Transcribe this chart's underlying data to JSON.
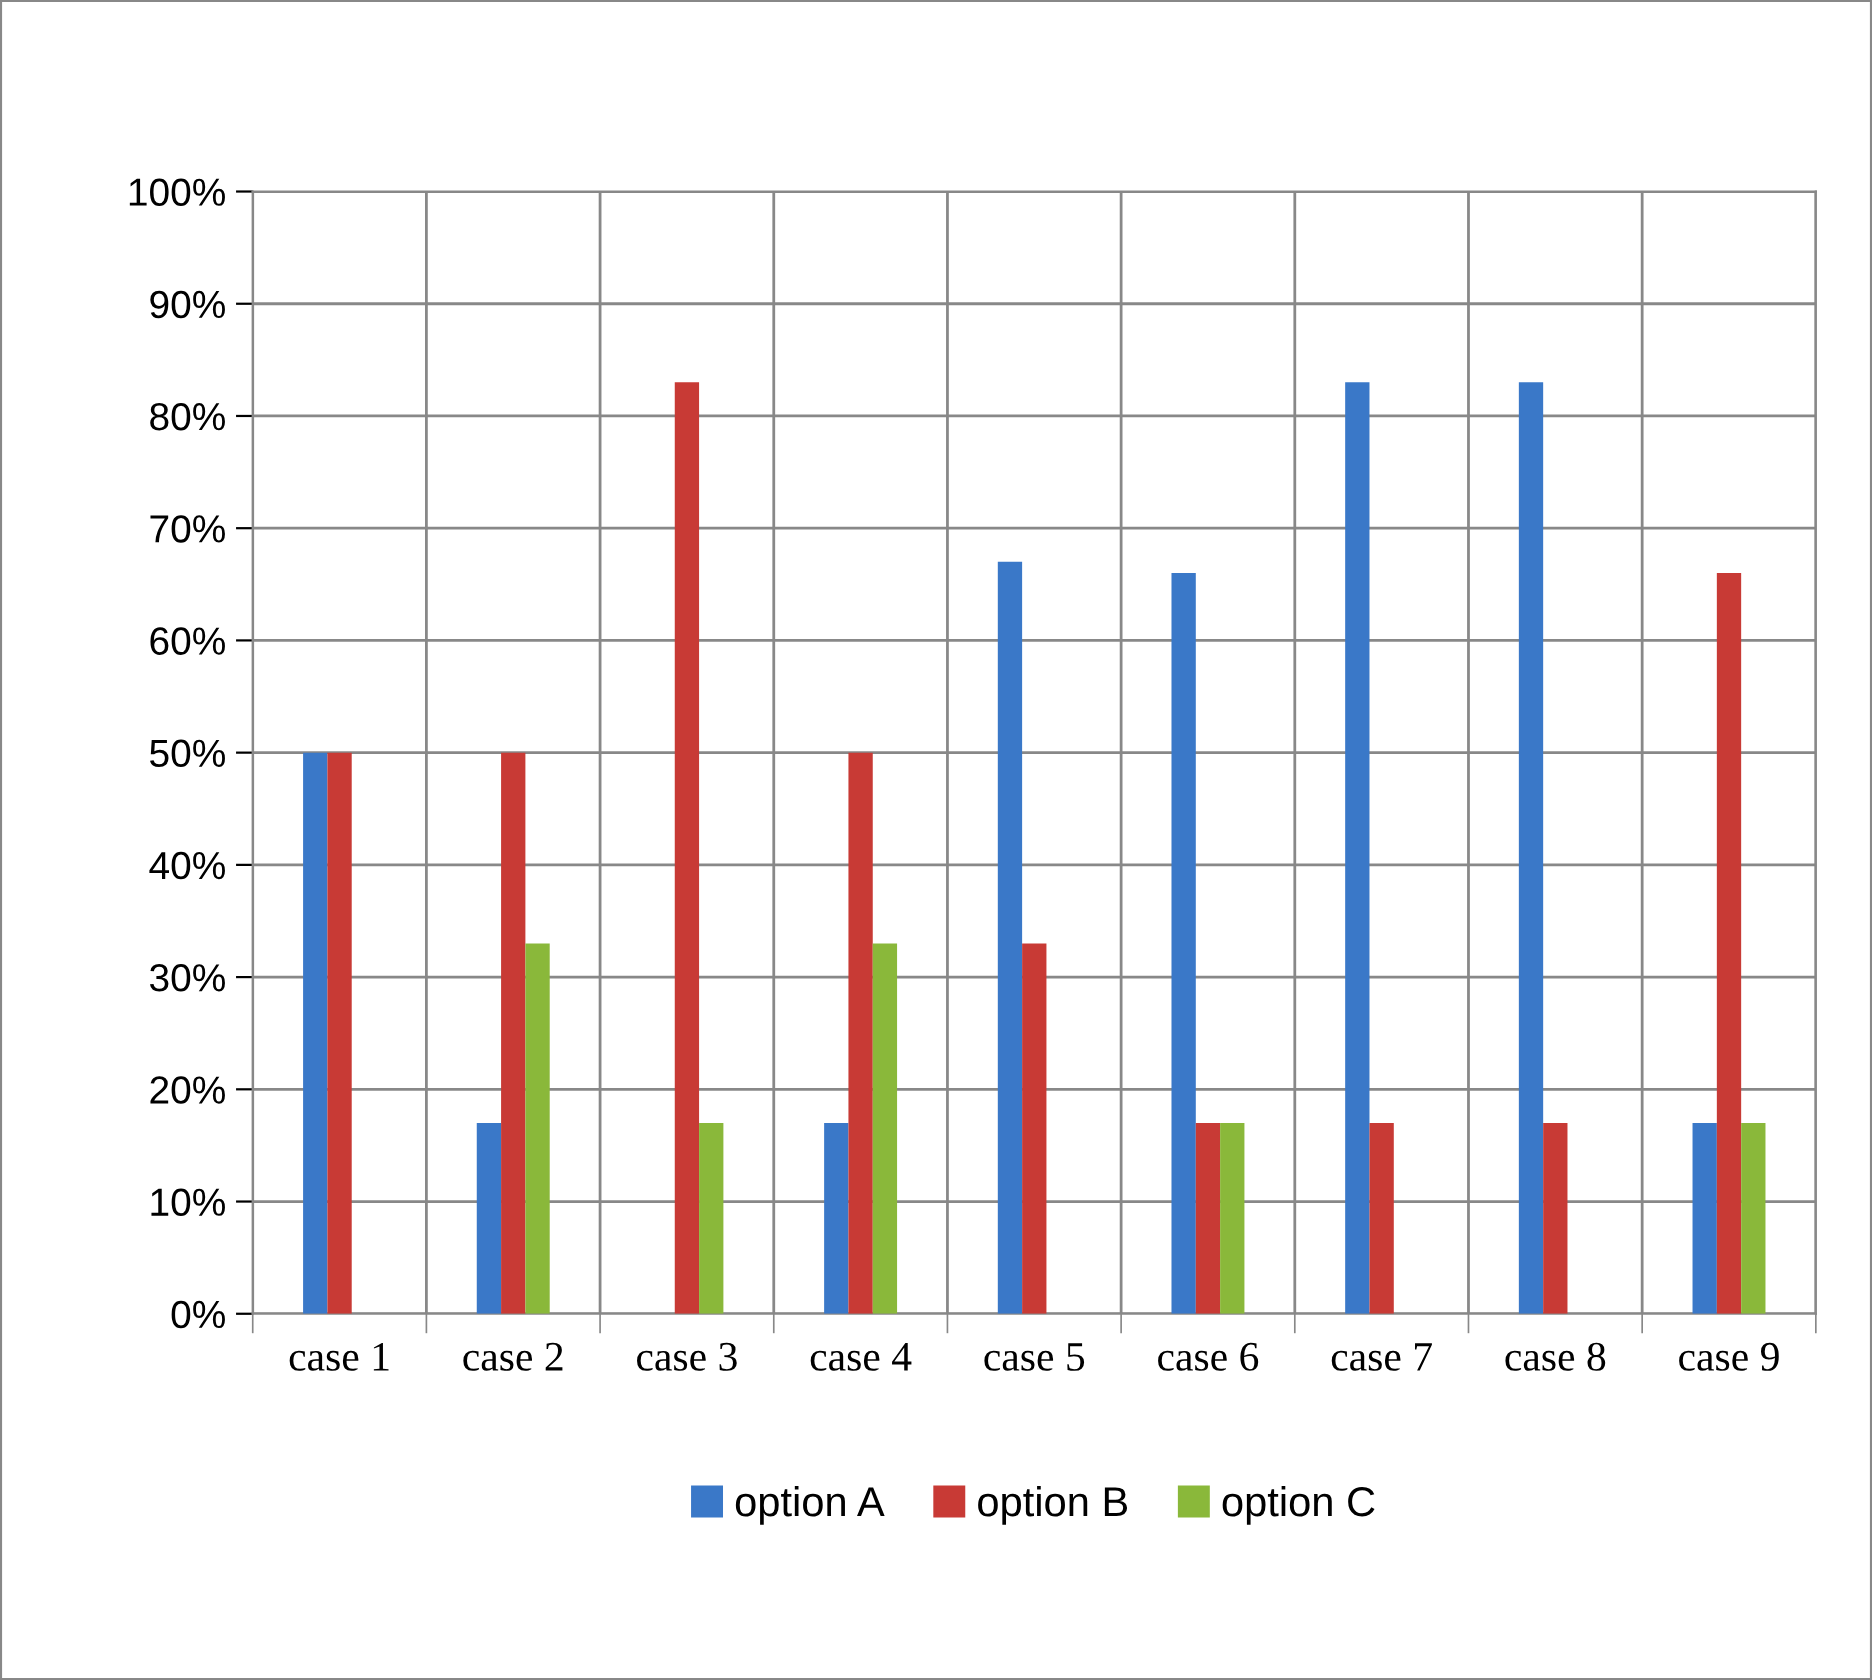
{
  "chart_data": {
    "type": "bar",
    "categories": [
      "case 1",
      "case 2",
      "case 3",
      "case 4",
      "case 5",
      "case 6",
      "case 7",
      "case 8",
      "case 9"
    ],
    "series": [
      {
        "name": "option A",
        "color": "#3a78c8",
        "values": [
          50,
          17,
          null,
          17,
          67,
          66,
          83,
          83,
          17
        ]
      },
      {
        "name": "option B",
        "color": "#c83a35",
        "values": [
          50,
          50,
          83,
          50,
          33,
          17,
          17,
          17,
          66
        ]
      },
      {
        "name": "option C",
        "color": "#8ab83a",
        "values": [
          null,
          33,
          17,
          33,
          null,
          17,
          null,
          null,
          17
        ]
      }
    ],
    "ylim": [
      0,
      100
    ],
    "yticks": [
      {
        "value": 0,
        "label": "0%"
      },
      {
        "value": 10,
        "label": "10%"
      },
      {
        "value": 20,
        "label": "20%"
      },
      {
        "value": 30,
        "label": "30%"
      },
      {
        "value": 40,
        "label": "40%"
      },
      {
        "value": 50,
        "label": "50%"
      },
      {
        "value": 60,
        "label": "60%"
      },
      {
        "value": 70,
        "label": "70%"
      },
      {
        "value": 80,
        "label": "80%"
      },
      {
        "value": 90,
        "label": "90%"
      },
      {
        "value": 100,
        "label": "100%"
      }
    ],
    "grid": true,
    "legend": "bottom"
  }
}
